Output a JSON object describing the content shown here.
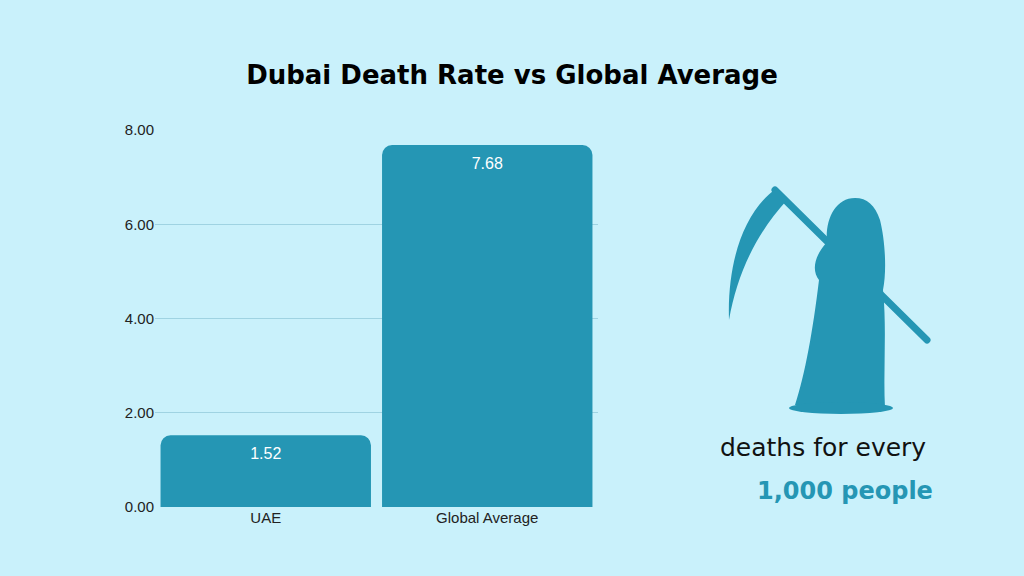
{
  "chart_data": {
    "type": "bar",
    "title": "Dubai Death Rate vs Global Average",
    "categories": [
      "UAE",
      "Global Average"
    ],
    "values": [
      1.52,
      7.68
    ],
    "color": "#2596b4",
    "ylim": [
      0,
      8
    ],
    "yticks": [
      {
        "value": 0,
        "label": "0.00"
      },
      {
        "value": 2,
        "label": "2.00"
      },
      {
        "value": 4,
        "label": "4.00"
      },
      {
        "value": 6,
        "label": "6.00"
      },
      {
        "value": 8,
        "label": "8.00"
      }
    ],
    "grid": true,
    "data_labels": true,
    "annotations": [
      "deaths for every",
      "1,000 people"
    ]
  }
}
